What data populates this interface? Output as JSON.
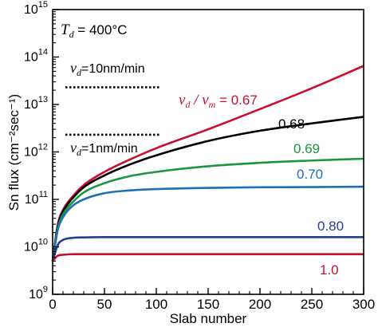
{
  "chart_data": {
    "type": "line",
    "xlabel": "Slab number",
    "ylabel": "Sn flux (cm⁻²sec⁻¹)",
    "xlim": [
      0,
      300
    ],
    "ylim": [
      1000000000.0,
      1000000000000000.0
    ],
    "y_scale": "log",
    "grid": false,
    "x_ticks": [
      0,
      50,
      100,
      150,
      200,
      250,
      300
    ],
    "x_tick_labels": [
      "0",
      "50",
      "100",
      "150",
      "200",
      "250",
      "300"
    ],
    "y_ticks": [
      1000000000.0,
      10000000000.0,
      100000000000.0,
      1000000000000.0,
      10000000000000.0,
      100000000000000.0,
      1000000000000000.0
    ],
    "y_tick_labels": [
      {
        "base": "10",
        "exp": "9"
      },
      {
        "base": "10",
        "exp": "10"
      },
      {
        "base": "10",
        "exp": "11"
      },
      {
        "base": "10",
        "exp": "12"
      },
      {
        "base": "10",
        "exp": "13"
      },
      {
        "base": "10",
        "exp": "14"
      },
      {
        "base": "10",
        "exp": "15"
      }
    ],
    "annotations": {
      "temperature": {
        "var": "T",
        "sub": "d",
        "text": " = 400°C"
      },
      "rate_high": {
        "var": "v",
        "sub": "d",
        "text": "=10nm/min",
        "y": 23000000000000.0
      },
      "rate_low": {
        "var": "v",
        "sub": "d",
        "text": "=1nm/min",
        "y": 2300000000000.0
      },
      "ratio_label": {
        "var1": "v",
        "sub1": "d",
        "sep": " / ",
        "var2": "v",
        "sub2": "m",
        "text": " = "
      }
    },
    "series": [
      {
        "label": "0.67",
        "color": "#c8102e",
        "x": [
          0,
          5,
          10,
          20,
          30,
          50,
          75,
          100,
          150,
          200,
          250,
          300
        ],
        "y": [
          5000000000.0,
          30000000000.0,
          60000000000.0,
          120000000000.0,
          200000000000.0,
          380000000000.0,
          700000000000.0,
          1200000000000.0,
          3000000000000.0,
          8000000000000.0,
          22000000000000.0,
          65000000000000.0
        ]
      },
      {
        "label": "0.68",
        "color": "#000000",
        "x": [
          0,
          5,
          10,
          20,
          30,
          50,
          75,
          100,
          150,
          200,
          250,
          300
        ],
        "y": [
          5000000000.0,
          28000000000.0,
          55000000000.0,
          110000000000.0,
          180000000000.0,
          320000000000.0,
          550000000000.0,
          850000000000.0,
          1700000000000.0,
          2800000000000.0,
          4000000000000.0,
          5500000000000.0
        ]
      },
      {
        "label": "0.69",
        "color": "#1a9640",
        "x": [
          0,
          5,
          10,
          20,
          30,
          50,
          75,
          100,
          150,
          200,
          250,
          300
        ],
        "y": [
          5000000000.0,
          25000000000.0,
          48000000000.0,
          90000000000.0,
          140000000000.0,
          220000000000.0,
          310000000000.0,
          380000000000.0,
          500000000000.0,
          590000000000.0,
          660000000000.0,
          720000000000.0
        ]
      },
      {
        "label": "0.70",
        "color": "#1f6fb4",
        "x": [
          0,
          5,
          10,
          20,
          30,
          50,
          75,
          100,
          150,
          200,
          250,
          300
        ],
        "y": [
          5000000000.0,
          23000000000.0,
          42000000000.0,
          75000000000.0,
          100000000000.0,
          135000000000.0,
          155000000000.0,
          165000000000.0,
          175000000000.0,
          180000000000.0,
          182000000000.0,
          185000000000.0
        ]
      },
      {
        "label": "0.80",
        "color": "#243f8f",
        "x": [
          0,
          5,
          10,
          20,
          30,
          50,
          100,
          150,
          200,
          250,
          300
        ],
        "y": [
          5000000000.0,
          11000000000.0,
          14000000000.0,
          15500000000.0,
          15800000000.0,
          16000000000.0,
          16000000000.0,
          16000000000.0,
          16000000000.0,
          16000000000.0,
          16000000000.0
        ]
      },
      {
        "label": "1.0",
        "color": "#c8102e",
        "x": [
          0,
          5,
          10,
          20,
          50,
          100,
          150,
          200,
          250,
          300
        ],
        "y": [
          5000000000.0,
          6500000000.0,
          6800000000.0,
          7000000000.0,
          7000000000.0,
          7000000000.0,
          7000000000.0,
          7000000000.0,
          7000000000.0,
          7000000000.0
        ]
      }
    ]
  }
}
